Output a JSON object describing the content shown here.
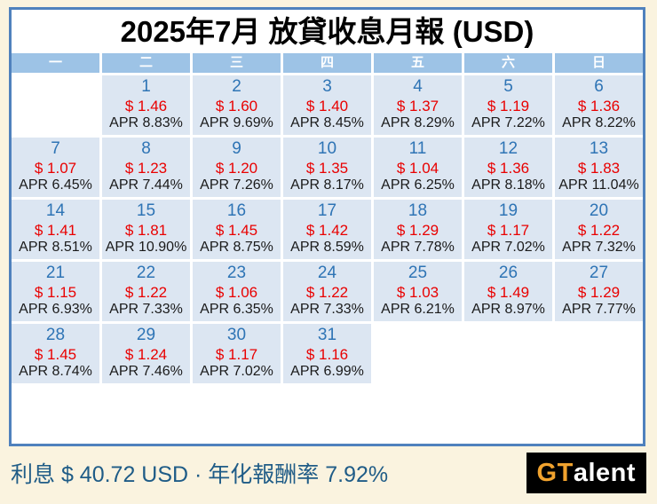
{
  "title": "2025年7月 放貸收息月報 (USD)",
  "calendar": {
    "weekday_headers": [
      "一",
      "二",
      "三",
      "四",
      "五",
      "六",
      "日"
    ],
    "weeks": [
      [
        null,
        {
          "day": "1",
          "amount": "$ 1.46",
          "apr": "APR 8.83%"
        },
        {
          "day": "2",
          "amount": "$ 1.60",
          "apr": "APR 9.69%"
        },
        {
          "day": "3",
          "amount": "$ 1.40",
          "apr": "APR 8.45%"
        },
        {
          "day": "4",
          "amount": "$ 1.37",
          "apr": "APR 8.29%"
        },
        {
          "day": "5",
          "amount": "$ 1.19",
          "apr": "APR 7.22%"
        },
        {
          "day": "6",
          "amount": "$ 1.36",
          "apr": "APR 8.22%"
        }
      ],
      [
        {
          "day": "7",
          "amount": "$ 1.07",
          "apr": "APR 6.45%"
        },
        {
          "day": "8",
          "amount": "$ 1.23",
          "apr": "APR 7.44%"
        },
        {
          "day": "9",
          "amount": "$ 1.20",
          "apr": "APR 7.26%"
        },
        {
          "day": "10",
          "amount": "$ 1.35",
          "apr": "APR 8.17%"
        },
        {
          "day": "11",
          "amount": "$ 1.04",
          "apr": "APR 6.25%"
        },
        {
          "day": "12",
          "amount": "$ 1.36",
          "apr": "APR 8.18%"
        },
        {
          "day": "13",
          "amount": "$ 1.83",
          "apr": "APR 11.04%"
        }
      ],
      [
        {
          "day": "14",
          "amount": "$ 1.41",
          "apr": "APR 8.51%"
        },
        {
          "day": "15",
          "amount": "$ 1.81",
          "apr": "APR 10.90%"
        },
        {
          "day": "16",
          "amount": "$ 1.45",
          "apr": "APR 8.75%"
        },
        {
          "day": "17",
          "amount": "$ 1.42",
          "apr": "APR 8.59%"
        },
        {
          "day": "18",
          "amount": "$ 1.29",
          "apr": "APR 7.78%"
        },
        {
          "day": "19",
          "amount": "$ 1.17",
          "apr": "APR 7.02%"
        },
        {
          "day": "20",
          "amount": "$ 1.22",
          "apr": "APR 7.32%"
        }
      ],
      [
        {
          "day": "21",
          "amount": "$ 1.15",
          "apr": "APR 6.93%"
        },
        {
          "day": "22",
          "amount": "$ 1.22",
          "apr": "APR 7.33%"
        },
        {
          "day": "23",
          "amount": "$ 1.06",
          "apr": "APR 6.35%"
        },
        {
          "day": "24",
          "amount": "$ 1.22",
          "apr": "APR 7.33%"
        },
        {
          "day": "25",
          "amount": "$ 1.03",
          "apr": "APR 6.21%"
        },
        {
          "day": "26",
          "amount": "$ 1.49",
          "apr": "APR 8.97%"
        },
        {
          "day": "27",
          "amount": "$ 1.29",
          "apr": "APR 7.77%"
        }
      ],
      [
        {
          "day": "28",
          "amount": "$ 1.45",
          "apr": "APR 8.74%"
        },
        {
          "day": "29",
          "amount": "$ 1.24",
          "apr": "APR 7.46%"
        },
        {
          "day": "30",
          "amount": "$ 1.17",
          "apr": "APR 7.02%"
        },
        {
          "day": "31",
          "amount": "$ 1.16",
          "apr": "APR 6.99%"
        },
        null,
        null,
        null
      ]
    ]
  },
  "footer": {
    "summary": "利息 $ 40.72 USD · 年化報酬率 7.92%",
    "logo": {
      "highlight": "GT",
      "rest": "alent"
    }
  },
  "colors": {
    "page_background": "#faf3df",
    "board_border": "#4f81bd",
    "header_background": "#9dc3e6",
    "cell_background": "#dce6f2",
    "day_number": "#2e74b5",
    "amount_red": "#e90000",
    "apr_black": "#1a1a1a",
    "summary_blue": "#1f5c87",
    "logo_background": "#000000",
    "logo_highlight": "#f0a22e"
  },
  "chart_data": {
    "type": "table",
    "title": "2025年7月 放貸收息月報 (USD)",
    "weekday_headers": [
      "一",
      "二",
      "三",
      "四",
      "五",
      "六",
      "日"
    ],
    "x": [
      1,
      2,
      3,
      4,
      5,
      6,
      7,
      8,
      9,
      10,
      11,
      12,
      13,
      14,
      15,
      16,
      17,
      18,
      19,
      20,
      21,
      22,
      23,
      24,
      25,
      26,
      27,
      28,
      29,
      30,
      31
    ],
    "series": [
      {
        "name": "利息 (USD)",
        "values": [
          1.46,
          1.6,
          1.4,
          1.37,
          1.19,
          1.36,
          1.07,
          1.23,
          1.2,
          1.35,
          1.04,
          1.36,
          1.83,
          1.41,
          1.81,
          1.45,
          1.42,
          1.29,
          1.17,
          1.22,
          1.15,
          1.22,
          1.06,
          1.22,
          1.03,
          1.49,
          1.29,
          1.45,
          1.24,
          1.17,
          1.16
        ]
      },
      {
        "name": "APR (%)",
        "values": [
          8.83,
          9.69,
          8.45,
          8.29,
          7.22,
          8.22,
          6.45,
          7.44,
          7.26,
          8.17,
          6.25,
          8.18,
          11.04,
          8.51,
          10.9,
          8.75,
          8.59,
          7.78,
          7.02,
          7.32,
          6.93,
          7.33,
          6.35,
          7.33,
          6.21,
          8.97,
          7.77,
          8.74,
          7.46,
          7.02,
          6.99
        ]
      }
    ],
    "summary": {
      "total_interest_usd": 40.72,
      "annualized_return_pct": 7.92
    },
    "layout": {
      "first_day_column": 2,
      "columns": 7,
      "weeks": 5
    }
  }
}
